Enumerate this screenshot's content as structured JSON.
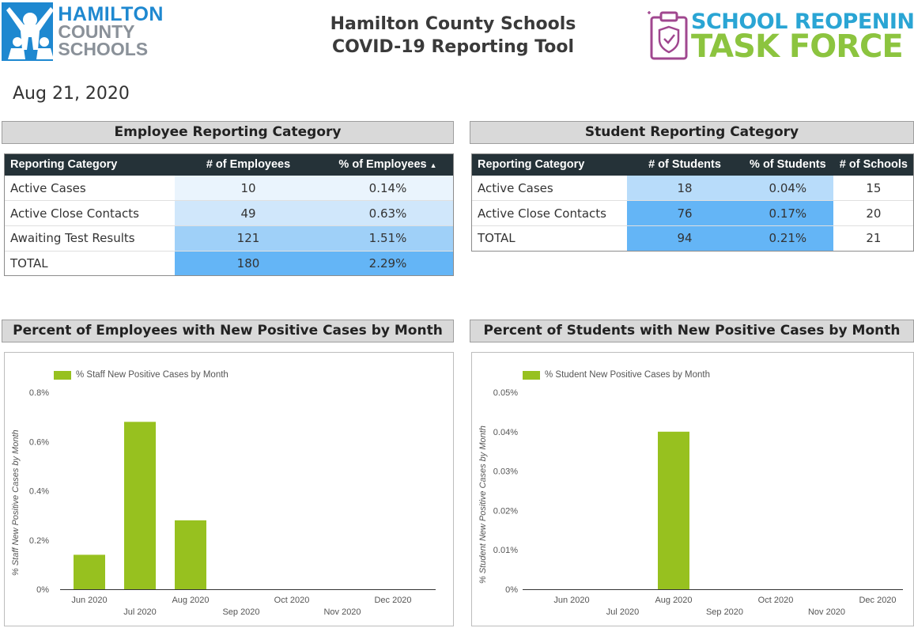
{
  "header": {
    "logo_left": {
      "line1": "HAMILTON",
      "line2": "COUNTY",
      "line3": "SCHOOLS"
    },
    "title_line1": "Hamilton County Schools",
    "title_line2": "COVID-19 Reporting Tool",
    "logo_right": {
      "line1": "SCHOOL REOPENING",
      "line2": "TASK FORCE"
    }
  },
  "report_date": "Aug 21, 2020",
  "employee_table": {
    "section_title": "Employee Reporting Category",
    "columns": [
      "Reporting Category",
      "# of Employees",
      "% of Employees"
    ],
    "sort_indicator": "▲",
    "rows": [
      {
        "category": "Active Cases",
        "count": "10",
        "percent": "0.14%"
      },
      {
        "category": "Active Close Contacts",
        "count": "49",
        "percent": "0.63%"
      },
      {
        "category": "Awaiting Test Results",
        "count": "121",
        "percent": "1.51%"
      },
      {
        "category": "TOTAL",
        "count": "180",
        "percent": "2.29%"
      }
    ]
  },
  "student_table": {
    "section_title": "Student Reporting Category",
    "columns": [
      "Reporting Category",
      "# of Students",
      "% of Students",
      "# of Schools"
    ],
    "rows": [
      {
        "category": "Active Cases",
        "count": "18",
        "percent": "0.04%",
        "schools": "15"
      },
      {
        "category": "Active Close Contacts",
        "count": "76",
        "percent": "0.17%",
        "schools": "20"
      },
      {
        "category": "TOTAL",
        "count": "94",
        "percent": "0.21%",
        "schools": "21"
      }
    ]
  },
  "colors": {
    "bar": "#97c11f",
    "table_header": "#253238",
    "heat_1": "#eaf4fd",
    "heat_2": "#d0e7fb",
    "heat_3": "#9fd0f8",
    "heat_4": "#64b5f6",
    "heat_5": "#b8dcfa"
  },
  "chart_data": [
    {
      "type": "bar",
      "title": "Percent of Employees with New Positive Cases by Month",
      "legend": "% Staff New Positive Cases by Month",
      "ylabel": "% Staff New Positive Cases by Month",
      "categories": [
        "Jun 2020",
        "Jul 2020",
        "Aug 2020",
        "Sep 2020",
        "Oct 2020",
        "Nov 2020",
        "Dec 2020"
      ],
      "values": [
        0.14,
        0.68,
        0.28,
        0,
        0,
        0,
        0
      ],
      "ylim": [
        0,
        0.8
      ],
      "yticks": [
        0,
        0.2,
        0.4,
        0.6,
        0.8
      ],
      "ytick_labels": [
        "0%",
        "0.2%",
        "0.4%",
        "0.6%",
        "0.8%"
      ],
      "legend_position": "top-left",
      "grid": false
    },
    {
      "type": "bar",
      "title": "Percent of Students with New Positive Cases by Month",
      "legend": "% Student New Positive Cases by Month",
      "ylabel": "% Student New Positive Cases by Month",
      "categories": [
        "Jun 2020",
        "Jul 2020",
        "Aug 2020",
        "Sep 2020",
        "Oct 2020",
        "Nov 2020",
        "Dec 2020"
      ],
      "values": [
        0,
        0,
        0.04,
        0,
        0,
        0,
        0
      ],
      "ylim": [
        0,
        0.05
      ],
      "yticks": [
        0,
        0.01,
        0.02,
        0.03,
        0.04,
        0.05
      ],
      "ytick_labels": [
        "0%",
        "0.01%",
        "0.02%",
        "0.03%",
        "0.04%",
        "0.05%"
      ],
      "legend_position": "top-left",
      "grid": false
    }
  ]
}
